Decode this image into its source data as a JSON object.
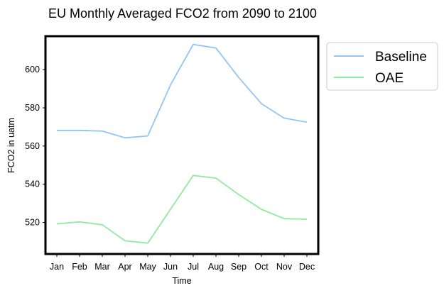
{
  "chart_data": {
    "type": "line",
    "title": "EU Monthly Averaged FCO2 from 2090 to 2100",
    "xlabel": "Time",
    "ylabel": "FCO2 in uatm",
    "categories": [
      "Jan",
      "Feb",
      "Mar",
      "Apr",
      "May",
      "Jun",
      "Jul",
      "Aug",
      "Sep",
      "Oct",
      "Nov",
      "Dec"
    ],
    "ylim": [
      503.5,
      617.5
    ],
    "yticks": [
      520,
      540,
      560,
      580,
      600
    ],
    "grid": false,
    "legend_position": "outside-upper-right",
    "series": [
      {
        "name": "Baseline",
        "color": "#92c5f5",
        "values": [
          568.2,
          568.2,
          567.8,
          564.3,
          565.3,
          592.0,
          613.2,
          611.3,
          595.9,
          582.2,
          574.6,
          572.5
        ]
      },
      {
        "name": "OAE",
        "color": "#90ea9f",
        "values": [
          519.3,
          520.3,
          518.8,
          510.4,
          509.2,
          526.9,
          544.6,
          543.2,
          534.6,
          526.9,
          522.0,
          521.7
        ]
      }
    ]
  }
}
